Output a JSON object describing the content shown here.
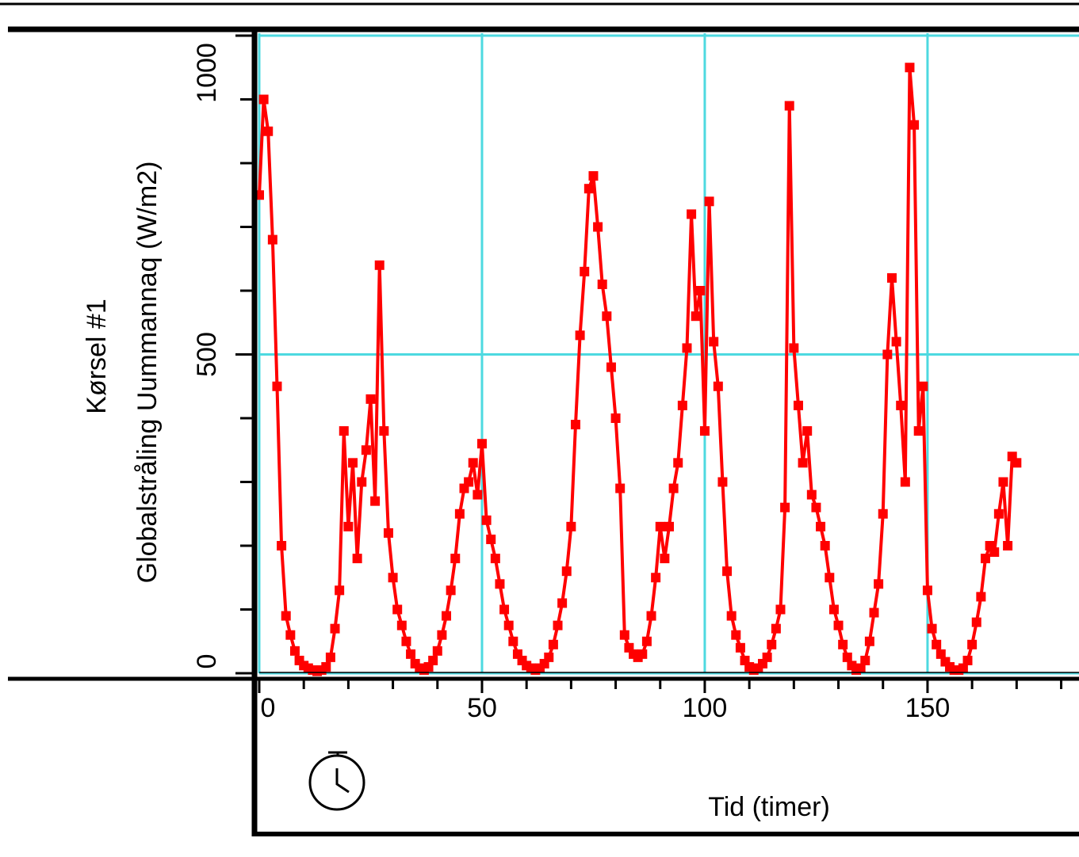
{
  "chart_data": {
    "type": "line",
    "title": "Kørsel #1",
    "y_label": "Globalstråling Uummannaq (W/m2)",
    "x_label": "Tid (timer)",
    "xlim": [
      0,
      184
    ],
    "ylim": [
      0,
      1000
    ],
    "xticks": [
      0,
      50,
      100,
      150
    ],
    "xminor_ticks": [
      10,
      20,
      30,
      40,
      60,
      70,
      80,
      90,
      110,
      120,
      130,
      140,
      160,
      170,
      180
    ],
    "yticks": [
      0,
      500,
      1000
    ],
    "yminor_ticks": [
      100,
      200,
      300,
      400,
      600,
      700,
      800,
      900
    ],
    "grid": true,
    "grid_color": "#4dd9e0",
    "series": [
      {
        "color": "#ff0000",
        "x": [
          0,
          1,
          2,
          3,
          4,
          5,
          6,
          7,
          8,
          9,
          10,
          11,
          12,
          13,
          14,
          15,
          16,
          17,
          18,
          19,
          20,
          21,
          22,
          23,
          24,
          25,
          26,
          27,
          28,
          29,
          30,
          31,
          32,
          33,
          34,
          35,
          36,
          37,
          38,
          39,
          40,
          41,
          42,
          43,
          44,
          45,
          46,
          47,
          48,
          49,
          50,
          51,
          52,
          53,
          54,
          55,
          56,
          57,
          58,
          59,
          60,
          61,
          62,
          63,
          64,
          65,
          66,
          67,
          68,
          69,
          70,
          71,
          72,
          73,
          74,
          75,
          76,
          77,
          78,
          79,
          80,
          81,
          82,
          83,
          84,
          85,
          86,
          87,
          88,
          89,
          90,
          91,
          92,
          93,
          94,
          95,
          96,
          97,
          98,
          99,
          100,
          101,
          102,
          103,
          104,
          105,
          106,
          107,
          108,
          109,
          110,
          111,
          112,
          113,
          114,
          115,
          116,
          117,
          118,
          119,
          120,
          121,
          122,
          123,
          124,
          125,
          126,
          127,
          128,
          129,
          130,
          131,
          132,
          133,
          134,
          135,
          136,
          137,
          138,
          139,
          140,
          141,
          142,
          143,
          144,
          145,
          146,
          147,
          148,
          149,
          150,
          151,
          152,
          153,
          154,
          155,
          156,
          157,
          158,
          159,
          160,
          161,
          162,
          163,
          164,
          165,
          166,
          167,
          168,
          169,
          170
        ],
        "values": [
          750,
          900,
          850,
          680,
          450,
          200,
          90,
          60,
          35,
          20,
          12,
          8,
          5,
          3,
          5,
          10,
          25,
          70,
          130,
          380,
          230,
          330,
          180,
          300,
          350,
          430,
          270,
          640,
          380,
          220,
          150,
          100,
          75,
          50,
          30,
          15,
          8,
          5,
          10,
          20,
          35,
          60,
          90,
          130,
          180,
          250,
          290,
          300,
          330,
          280,
          360,
          240,
          210,
          180,
          140,
          100,
          75,
          50,
          30,
          20,
          12,
          8,
          5,
          8,
          15,
          25,
          45,
          75,
          110,
          160,
          230,
          390,
          530,
          630,
          760,
          780,
          700,
          610,
          560,
          480,
          400,
          290,
          60,
          40,
          30,
          25,
          30,
          50,
          90,
          150,
          230,
          180,
          230,
          290,
          330,
          420,
          510,
          720,
          560,
          600,
          380,
          740,
          520,
          450,
          300,
          160,
          90,
          60,
          40,
          20,
          10,
          5,
          8,
          15,
          25,
          45,
          70,
          100,
          260,
          890,
          510,
          420,
          330,
          380,
          280,
          260,
          230,
          200,
          150,
          100,
          75,
          45,
          25,
          12,
          5,
          8,
          20,
          50,
          95,
          140,
          250,
          500,
          620,
          520,
          420,
          300,
          950,
          860,
          380,
          450,
          130,
          70,
          45,
          30,
          18,
          10,
          5,
          5,
          8,
          20,
          45,
          80,
          120,
          180,
          200,
          190,
          250,
          300,
          200,
          340,
          330
        ]
      }
    ]
  }
}
